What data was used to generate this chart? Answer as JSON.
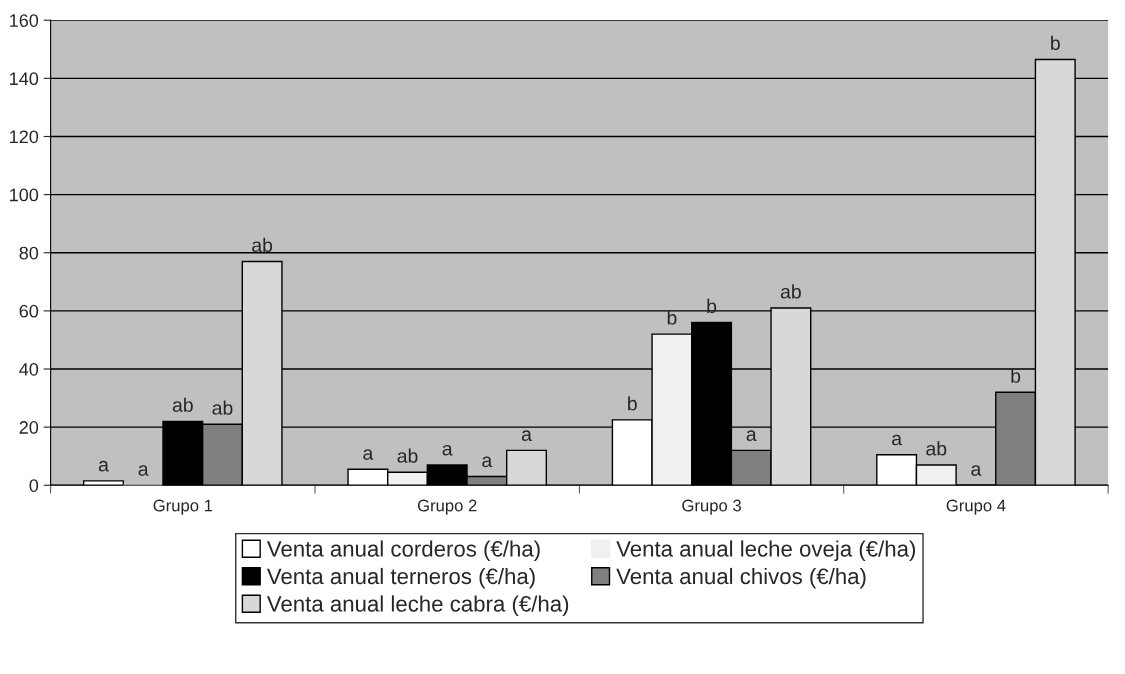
{
  "chart_data": {
    "type": "bar",
    "categories": [
      "Grupo 1",
      "Grupo 2",
      "Grupo 3",
      "Grupo 4"
    ],
    "series": [
      {
        "name": "Venta anual corderos (€/ha)",
        "color": "#ffffff",
        "values": [
          1.5,
          5.5,
          22.5,
          10.5
        ],
        "value_labels": [
          "a",
          "a",
          "b",
          "a"
        ]
      },
      {
        "name": "Venta anual leche oveja (€/ha)",
        "color": "#f0f0f0",
        "values": [
          0,
          4.5,
          52,
          7
        ],
        "value_labels": [
          "a",
          "ab",
          "b",
          "ab"
        ]
      },
      {
        "name": "Venta anual terneros (€/ha)",
        "color": "#000000",
        "values": [
          22,
          7,
          56,
          0
        ],
        "value_labels": [
          "ab",
          "a",
          "b",
          "a"
        ]
      },
      {
        "name": "Venta anual chivos (€/ha)",
        "color": "#808080",
        "values": [
          21,
          3,
          12,
          32
        ],
        "value_labels": [
          "ab",
          "a",
          "a",
          "b"
        ]
      },
      {
        "name": "Venta anual leche cabra (€/ha)",
        "color": "#d8d8d8",
        "values": [
          77,
          12,
          61,
          146.5
        ],
        "value_labels": [
          "ab",
          "a",
          "ab",
          "b"
        ]
      }
    ],
    "ylim": [
      0,
      160
    ],
    "yticks": [
      0,
      20,
      40,
      60,
      80,
      100,
      120,
      140,
      160
    ],
    "grid": "y",
    "legend": "bottom"
  }
}
